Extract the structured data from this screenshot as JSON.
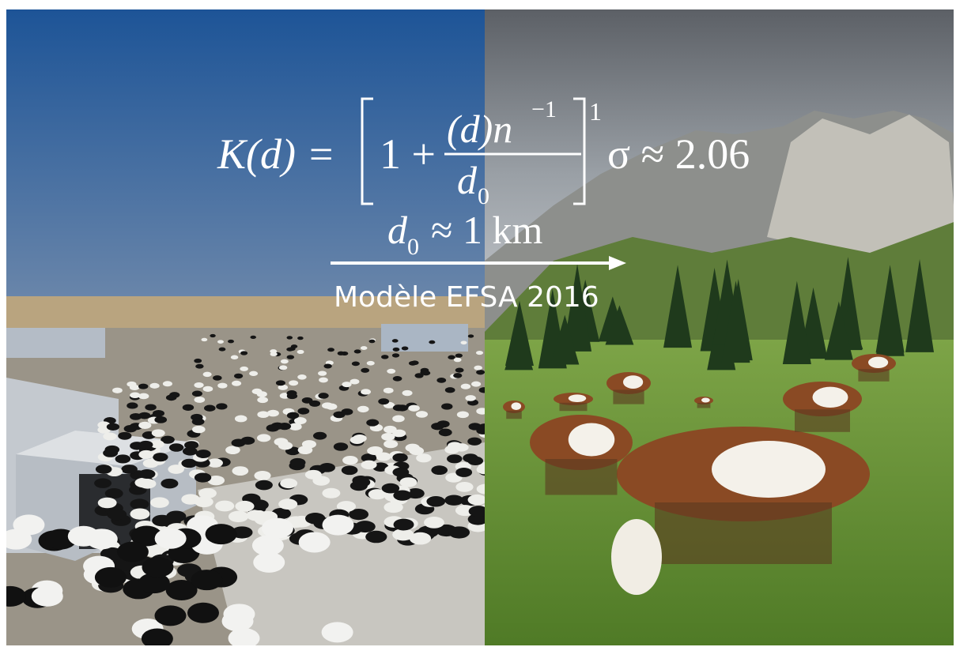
{
  "formula": {
    "lhs": "K(d) =",
    "one_plus": "1 +",
    "numerator": "(d)n",
    "numerator_exp": "−1",
    "denominator": "d",
    "denominator_sub": "0",
    "outer_exp": "1",
    "sigma": "σ ≈ 2.06"
  },
  "scale": {
    "symbol": "d",
    "sub": "0",
    "rest": "≈ 1 km"
  },
  "caption": "Modèle EFSA 2016"
}
